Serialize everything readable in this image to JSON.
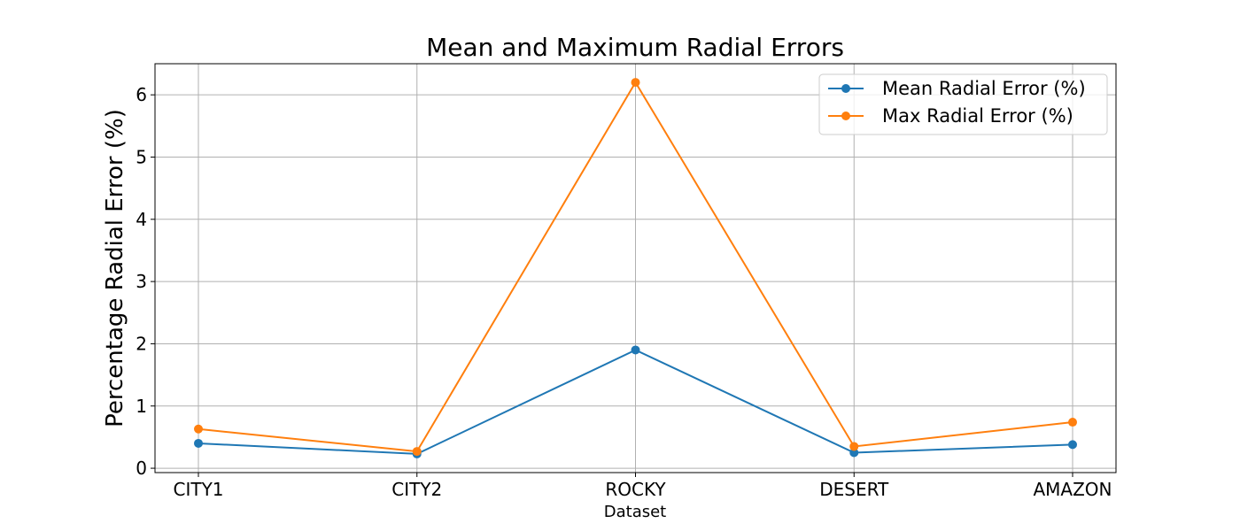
{
  "chart_data": {
    "type": "line",
    "title": "Mean and Maximum Radial Errors",
    "xlabel": "Dataset",
    "ylabel": "Percentage Radial Error (%)",
    "categories": [
      "CITY1",
      "CITY2",
      "ROCKY",
      "DESERT",
      "AMAZON"
    ],
    "yticks": [
      "0",
      "1",
      "2",
      "3",
      "4",
      "5",
      "6"
    ],
    "ylim": [
      -0.07,
      6.5
    ],
    "grid": true,
    "legend_position": "top-right",
    "series": [
      {
        "name": "Mean Radial Error (%)",
        "color": "#1f77b4",
        "values": [
          0.4,
          0.23,
          1.9,
          0.25,
          0.38
        ]
      },
      {
        "name": "Max Radial Error (%)",
        "color": "#ff7f0e",
        "values": [
          0.63,
          0.27,
          6.2,
          0.35,
          0.74
        ]
      }
    ]
  }
}
